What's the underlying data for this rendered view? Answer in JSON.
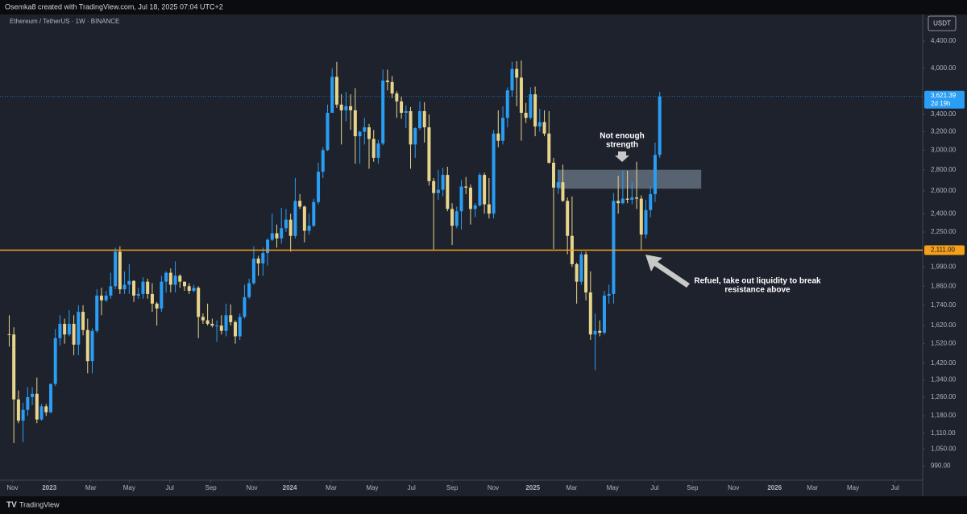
{
  "chart_data": {
    "type": "candlestick",
    "credit": "Osemka8 created with TradingView.com, Jul 18, 2025 07:04 UTC+2",
    "title": "Ethereum / TetherUS · 1W · BINANCE",
    "currency": "USDT",
    "brand": "TradingView",
    "log_scale": true,
    "up_color": "#2a9df4",
    "down_color": "#e8d48b",
    "x": [
      0,
      1,
      2,
      3,
      4,
      5,
      6,
      7,
      8,
      9,
      10,
      11,
      12,
      13,
      14,
      15,
      16,
      17,
      18,
      19,
      20,
      21,
      22,
      23,
      24,
      25,
      26,
      27,
      28,
      29,
      30,
      31,
      32,
      33,
      34,
      35,
      36,
      37,
      38,
      39,
      40,
      41,
      42,
      43,
      44,
      45,
      46,
      47,
      48,
      49,
      50,
      51,
      52,
      53,
      54,
      55,
      56,
      57,
      58,
      59,
      60,
      61,
      62,
      63,
      64,
      65,
      66,
      67,
      68,
      69,
      70,
      71,
      72,
      73,
      74,
      75,
      76,
      77,
      78,
      79,
      80,
      81,
      82,
      83,
      84,
      85,
      86,
      87,
      88,
      89,
      90,
      91,
      92,
      93,
      94,
      95,
      96,
      97,
      98,
      99,
      100,
      101,
      102,
      103,
      104,
      105,
      106,
      107,
      108,
      109,
      110,
      111,
      112,
      113,
      114,
      115,
      116,
      117,
      118,
      119,
      120,
      121,
      122,
      123,
      124,
      125,
      126,
      127,
      128,
      129,
      130,
      131,
      132,
      133,
      134,
      135,
      136,
      137,
      138,
      139,
      140,
      141
    ],
    "open": [
      1572,
      1570,
      1250,
      1160,
      1205,
      1260,
      1275,
      1165,
      1220,
      1195,
      1320,
      1550,
      1630,
      1570,
      1630,
      1515,
      1700,
      1595,
      1430,
      1590,
      1800,
      1770,
      1800,
      1860,
      2100,
      1840,
      1870,
      1895,
      1800,
      1810,
      1890,
      1810,
      1750,
      1720,
      1890,
      1950,
      1870,
      1930,
      1890,
      1860,
      1830,
      1850,
      1670,
      1650,
      1630,
      1620,
      1620,
      1590,
      1680,
      1640,
      1560,
      1670,
      1790,
      1880,
      2050,
      2015,
      2090,
      2190,
      2240,
      2200,
      2280,
      2350,
      2220,
      2510,
      2460,
      2260,
      2300,
      2500,
      2780,
      3000,
      3420,
      3880,
      3520,
      3450,
      3500,
      3450,
      3150,
      3200,
      3250,
      3120,
      2920,
      3070,
      3830,
      3810,
      3660,
      3560,
      3420,
      3440,
      3060,
      3240,
      3440,
      3250,
      2690,
      2580,
      2610,
      2750,
      2440,
      2300,
      2420,
      2640,
      2630,
      2440,
      2470,
      2750,
      2480,
      2400,
      3180,
      3100,
      3360,
      3700,
      3990,
      3870,
      3420,
      3360,
      3650,
      3260,
      3310,
      3180,
      2870,
      2630,
      2680,
      2510,
      2220,
      2010,
      1890,
      2080,
      1820,
      1570,
      1590,
      1580,
      1800,
      1810,
      2510,
      2490,
      2530,
      2520,
      2540,
      2530,
      2230,
      2430,
      2570,
      2950
    ],
    "high": [
      1680,
      1610,
      1290,
      1235,
      1305,
      1305,
      1350,
      1230,
      1230,
      1320,
      1600,
      1680,
      1660,
      1710,
      1680,
      1740,
      1740,
      1660,
      1605,
      1840,
      1850,
      1830,
      1950,
      2130,
      2140,
      1960,
      2010,
      1900,
      1850,
      1920,
      1910,
      1880,
      1760,
      1930,
      1960,
      1980,
      2030,
      1940,
      1890,
      1880,
      1870,
      1860,
      1690,
      1750,
      1660,
      1650,
      1680,
      1750,
      1745,
      1650,
      1690,
      1870,
      1910,
      2140,
      2070,
      2130,
      2200,
      2400,
      2310,
      2450,
      2440,
      2400,
      2720,
      2570,
      2470,
      2400,
      2530,
      2870,
      3030,
      3520,
      4000,
      4090,
      3650,
      3680,
      3650,
      3730,
      3210,
      3360,
      3290,
      3220,
      3110,
      3980,
      3980,
      3890,
      3690,
      3620,
      3510,
      3490,
      3250,
      3560,
      3550,
      3400,
      2720,
      2800,
      2820,
      2830,
      2490,
      2460,
      2700,
      2730,
      2660,
      2490,
      2770,
      2770,
      2720,
      3220,
      3450,
      3500,
      3740,
      4090,
      4100,
      4110,
      3540,
      3740,
      3750,
      3470,
      3450,
      3440,
      2920,
      2800,
      2850,
      2540,
      2550,
      2020,
      2100,
      2100,
      1960,
      1690,
      1650,
      1830,
      1870,
      2580,
      2740,
      2790,
      2790,
      2680,
      2880,
      2560,
      2520,
      2640,
      3080,
      3680
    ],
    "low": [
      1505,
      1072,
      1150,
      1075,
      1180,
      1225,
      1150,
      1160,
      1180,
      1190,
      1310,
      1510,
      1520,
      1560,
      1460,
      1460,
      1565,
      1370,
      1370,
      1580,
      1680,
      1760,
      1780,
      1840,
      1810,
      1810,
      1810,
      1760,
      1780,
      1780,
      1780,
      1700,
      1620,
      1700,
      1820,
      1820,
      1820,
      1850,
      1830,
      1810,
      1820,
      1550,
      1630,
      1620,
      1610,
      1530,
      1570,
      1560,
      1620,
      1520,
      1540,
      1660,
      1780,
      1870,
      1930,
      1930,
      2000,
      2180,
      2130,
      2160,
      2250,
      2100,
      2200,
      2440,
      2170,
      2230,
      2290,
      2480,
      2720,
      2990,
      3420,
      3480,
      3060,
      3320,
      3220,
      2860,
      2860,
      3060,
      2810,
      2880,
      2860,
      3050,
      3700,
      3600,
      3360,
      3350,
      3240,
      2810,
      2920,
      3220,
      3080,
      2650,
      2110,
      2520,
      2550,
      2420,
      2150,
      2280,
      2270,
      2570,
      2310,
      2370,
      2460,
      2400,
      2360,
      2360,
      3030,
      3060,
      3250,
      3620,
      3500,
      3100,
      3300,
      3340,
      3150,
      3200,
      3150,
      2860,
      2120,
      2570,
      2500,
      2080,
      1990,
      1750,
      1870,
      1770,
      1540,
      1385,
      1560,
      1570,
      1750,
      1750,
      2400,
      2480,
      2490,
      2480,
      2440,
      2110,
      2200,
      2370,
      2500,
      2920
    ],
    "close": [
      1570,
      1250,
      1160,
      1205,
      1260,
      1275,
      1165,
      1220,
      1195,
      1320,
      1550,
      1630,
      1570,
      1630,
      1515,
      1700,
      1595,
      1430,
      1590,
      1800,
      1770,
      1800,
      1860,
      2100,
      1840,
      1870,
      1895,
      1800,
      1810,
      1890,
      1810,
      1750,
      1720,
      1890,
      1950,
      1870,
      1930,
      1890,
      1860,
      1830,
      1850,
      1670,
      1650,
      1630,
      1620,
      1620,
      1590,
      1680,
      1640,
      1560,
      1670,
      1790,
      1880,
      2050,
      2015,
      2090,
      2190,
      2240,
      2200,
      2280,
      2350,
      2220,
      2510,
      2460,
      2260,
      2300,
      2500,
      2780,
      3000,
      3420,
      3880,
      3520,
      3450,
      3500,
      3450,
      3150,
      3200,
      3250,
      3120,
      2920,
      3070,
      3830,
      3810,
      3660,
      3560,
      3420,
      3440,
      3060,
      3240,
      3440,
      3250,
      2690,
      2580,
      2610,
      2750,
      2440,
      2300,
      2420,
      2640,
      2630,
      2440,
      2470,
      2750,
      2480,
      2400,
      3180,
      3100,
      3360,
      3700,
      3990,
      3870,
      3420,
      3360,
      3650,
      3260,
      3310,
      3180,
      2870,
      2630,
      2680,
      2510,
      2220,
      2010,
      1890,
      2080,
      1820,
      1570,
      1590,
      1580,
      1800,
      1810,
      2510,
      2490,
      2530,
      2520,
      2540,
      2530,
      2230,
      2430,
      2570,
      2950,
      3621.39
    ],
    "xlim": [
      -2,
      198
    ],
    "ylim": [
      944,
      4830
    ],
    "xticks": [
      {
        "value": 0.7,
        "label": "Nov"
      },
      {
        "value": 8.7,
        "label": "2023"
      },
      {
        "value": 17.7,
        "label": "Mar"
      },
      {
        "value": 26.0,
        "label": "May"
      },
      {
        "value": 34.8,
        "label": "Jul"
      },
      {
        "value": 43.7,
        "label": "Sep"
      },
      {
        "value": 52.6,
        "label": "Nov"
      },
      {
        "value": 60.8,
        "label": "2024"
      },
      {
        "value": 69.8,
        "label": "Mar"
      },
      {
        "value": 78.7,
        "label": "May"
      },
      {
        "value": 87.2,
        "label": "Jul"
      },
      {
        "value": 96.0,
        "label": "Sep"
      },
      {
        "value": 104.9,
        "label": "Nov"
      },
      {
        "value": 113.5,
        "label": "2025"
      },
      {
        "value": 121.9,
        "label": "Mar"
      },
      {
        "value": 130.8,
        "label": "May"
      },
      {
        "value": 139.9,
        "label": "Jul"
      },
      {
        "value": 148.1,
        "label": "Sep"
      },
      {
        "value": 157.0,
        "label": "Nov"
      },
      {
        "value": 165.9,
        "label": "2026"
      },
      {
        "value": 174.1,
        "label": "Mar"
      },
      {
        "value": 182.9,
        "label": "May"
      },
      {
        "value": 192.0,
        "label": "Jul"
      }
    ],
    "yticks": [
      {
        "value": 4400,
        "label": "4,400.00"
      },
      {
        "value": 4000,
        "label": "4,000.00"
      },
      {
        "value": 3400,
        "label": "3,400.00"
      },
      {
        "value": 3200,
        "label": "3,200.00"
      },
      {
        "value": 3000,
        "label": "3,000.00"
      },
      {
        "value": 2800,
        "label": "2,800.00"
      },
      {
        "value": 2600,
        "label": "2,600.00"
      },
      {
        "value": 2400,
        "label": "2,400.00"
      },
      {
        "value": 2250,
        "label": "2,250.00"
      },
      {
        "value": 1990,
        "label": "1,990.00"
      },
      {
        "value": 1860,
        "label": "1,860.00"
      },
      {
        "value": 1740,
        "label": "1,740.00"
      },
      {
        "value": 1620,
        "label": "1,620.00"
      },
      {
        "value": 1520,
        "label": "1,520.00"
      },
      {
        "value": 1420,
        "label": "1,420.00"
      },
      {
        "value": 1340,
        "label": "1,340.00"
      },
      {
        "value": 1260,
        "label": "1,260.00"
      },
      {
        "value": 1180,
        "label": "1,180.00"
      },
      {
        "value": 1110,
        "label": "1,110.00"
      },
      {
        "value": 1050,
        "label": "1,050.00"
      },
      {
        "value": 990,
        "label": "990.00"
      }
    ],
    "level": {
      "value": 2111,
      "label": "2,111.00",
      "color": "#f59f1a"
    },
    "last_price": {
      "value": 3621.39,
      "label": "3,621.39",
      "countdown": "2d 19h",
      "color": "#2a9df4"
    },
    "zone": {
      "x": [
        119,
        150
      ],
      "y": [
        2620,
        2800
      ],
      "color": "#8fa3b3"
    },
    "annotations": [
      {
        "lines": [
          "Not enough",
          "strength"
        ]
      },
      {
        "lines": [
          "Refuel, take out liquidity to break",
          "resistance above"
        ]
      }
    ]
  }
}
